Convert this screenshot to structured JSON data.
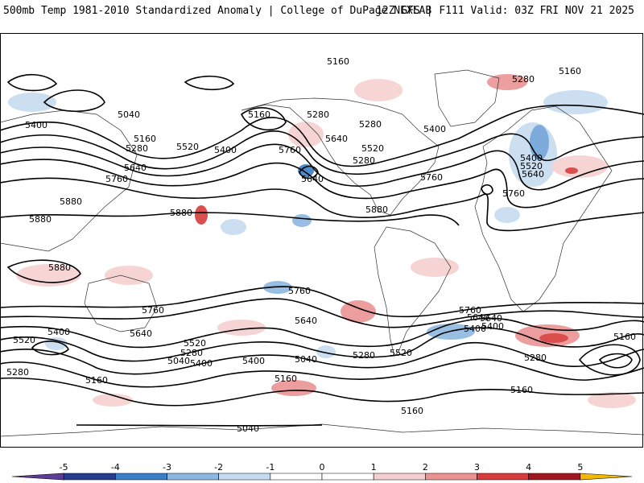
{
  "header": {
    "left_title": "500mb Temp 1981-2010 Standardized Anomaly | College of DuPage NEXLAB",
    "right_title": "12Z GFS | F111 Valid: 03Z FRI NOV 21 2025"
  },
  "map": {
    "contour_labels": [
      {
        "id": "c1",
        "text": "5160"
      },
      {
        "id": "c2",
        "text": "5160"
      },
      {
        "id": "c3",
        "text": "5280"
      },
      {
        "id": "c4",
        "text": "5040"
      },
      {
        "id": "c5",
        "text": "5160"
      },
      {
        "id": "c6",
        "text": "5400"
      },
      {
        "id": "c7",
        "text": "5160"
      },
      {
        "id": "c8",
        "text": "5280"
      },
      {
        "id": "c9",
        "text": "5520"
      },
      {
        "id": "c10",
        "text": "5400"
      },
      {
        "id": "c11",
        "text": "5640"
      },
      {
        "id": "c12",
        "text": "5760"
      },
      {
        "id": "c13",
        "text": "5280"
      },
      {
        "id": "c14",
        "text": "5640"
      },
      {
        "id": "c15",
        "text": "5280"
      },
      {
        "id": "c16",
        "text": "5520"
      },
      {
        "id": "c17",
        "text": "5400"
      },
      {
        "id": "c18",
        "text": "5760"
      },
      {
        "id": "c19",
        "text": "5640"
      },
      {
        "id": "c20",
        "text": "5880"
      },
      {
        "id": "c21",
        "text": "5880"
      },
      {
        "id": "c22",
        "text": "5880"
      },
      {
        "id": "c23",
        "text": "5880"
      },
      {
        "id": "c24",
        "text": "5760"
      },
      {
        "id": "c25",
        "text": "5400"
      },
      {
        "id": "c26",
        "text": "5520"
      },
      {
        "id": "c27",
        "text": "5640"
      },
      {
        "id": "c28",
        "text": "5760"
      },
      {
        "id": "c29",
        "text": "5280"
      },
      {
        "id": "c30",
        "text": "5880"
      },
      {
        "id": "c31",
        "text": "5760"
      },
      {
        "id": "c32",
        "text": "5760"
      },
      {
        "id": "c33",
        "text": "5640"
      },
      {
        "id": "c34",
        "text": "5640"
      },
      {
        "id": "c35",
        "text": "5400"
      },
      {
        "id": "c36",
        "text": "5520"
      },
      {
        "id": "c37",
        "text": "5280"
      },
      {
        "id": "c38",
        "text": "5400"
      },
      {
        "id": "c39",
        "text": "5040"
      },
      {
        "id": "c40",
        "text": "5040"
      },
      {
        "id": "c41",
        "text": "5400"
      },
      {
        "id": "c42",
        "text": "5280"
      },
      {
        "id": "c43",
        "text": "5520"
      },
      {
        "id": "c44",
        "text": "5760"
      },
      {
        "id": "c45",
        "text": "5640"
      },
      {
        "id": "c46",
        "text": "5400"
      },
      {
        "id": "c47",
        "text": "5160"
      },
      {
        "id": "c48",
        "text": "5280"
      },
      {
        "id": "c49",
        "text": "5160"
      },
      {
        "id": "c50",
        "text": "5160"
      },
      {
        "id": "c51",
        "text": "5160"
      },
      {
        "id": "c52",
        "text": "5040"
      },
      {
        "id": "c53",
        "text": "5160"
      },
      {
        "id": "c54",
        "text": "5520"
      },
      {
        "id": "c55",
        "text": "5280"
      },
      {
        "id": "c56",
        "text": "5400"
      },
      {
        "id": "c57",
        "text": "5640"
      }
    ]
  },
  "colorbar": {
    "labels": [
      "-5",
      "-4",
      "-3",
      "-2",
      "-1",
      "0",
      "1",
      "2",
      "3",
      "4",
      "5"
    ],
    "colors": [
      "#5e3c99",
      "#253d8c",
      "#3b7fc7",
      "#8fb8e0",
      "#c6dcf0",
      "#ffffff",
      "#ffffff",
      "#f6d0d0",
      "#eb9393",
      "#d73b3b",
      "#a11620",
      "#f5b800"
    ]
  }
}
